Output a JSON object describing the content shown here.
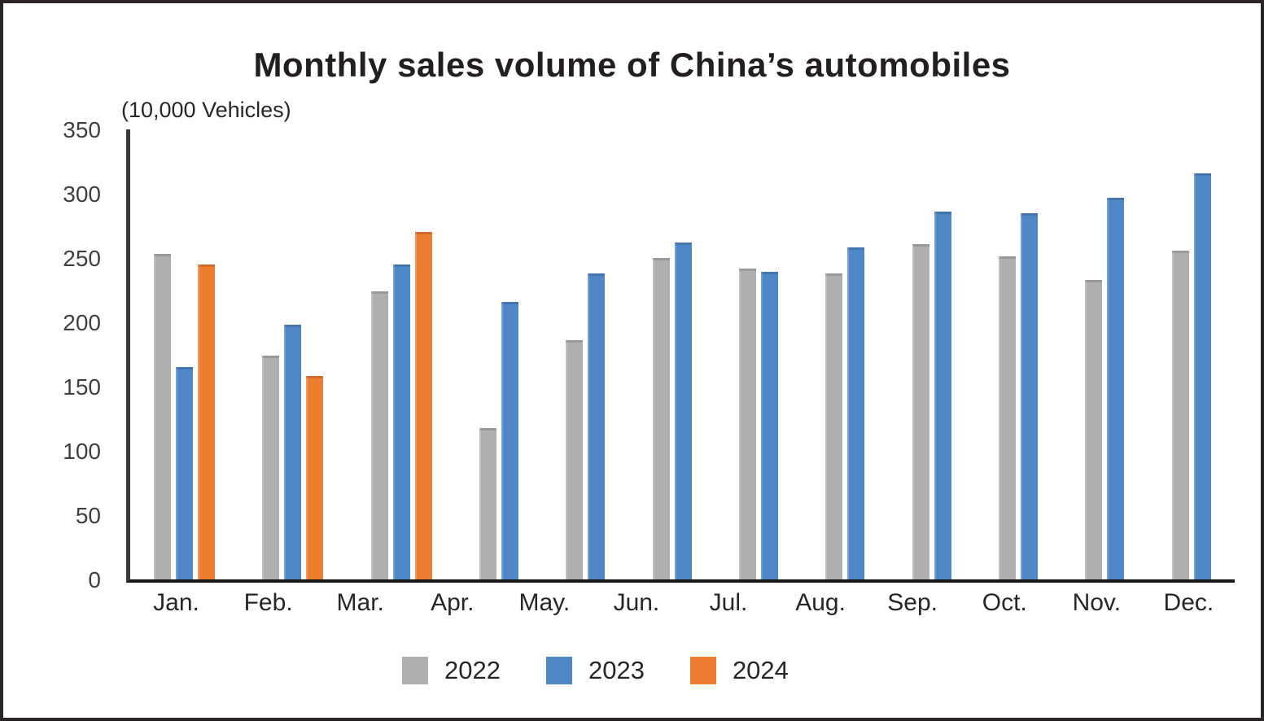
{
  "title": "Monthly sales volume of China’s automobiles",
  "unit_label": "(10,000 Vehicles)",
  "colors": {
    "series_2022": "#AFAFAF",
    "series_2023": "#4F86C6",
    "series_2024": "#ED7D31",
    "axis_vertical": "#3B3B3B",
    "axis_horizontal": "#181818",
    "title_text": "#231F20",
    "tick_text": "#3F3F3F",
    "page_border": "#2B2424"
  },
  "chart_data": {
    "type": "bar",
    "title": "Monthly sales volume of China’s automobiles",
    "xlabel": "",
    "ylabel": "(10,000 Vehicles)",
    "ylim": [
      0,
      350
    ],
    "yticks": [
      0,
      50,
      100,
      150,
      200,
      250,
      300,
      350
    ],
    "grid": false,
    "legend_position": "bottom",
    "categories": [
      "Jan.",
      "Feb.",
      "Mar.",
      "Apr.",
      "May.",
      "Jun.",
      "Jul.",
      "Aug.",
      "Sep.",
      "Oct.",
      "Nov.",
      "Dec."
    ],
    "series": [
      {
        "name": "2022",
        "color": "#AFAFAF",
        "values": [
          253,
          174,
          224,
          118,
          186,
          250,
          242,
          238,
          261,
          251,
          233,
          256
        ]
      },
      {
        "name": "2023",
        "color": "#4F86C6",
        "values": [
          165,
          198,
          245,
          216,
          238,
          262,
          239,
          258,
          286,
          285,
          297,
          316
        ]
      },
      {
        "name": "2024",
        "color": "#ED7D31",
        "values": [
          245,
          158,
          270,
          null,
          null,
          null,
          null,
          null,
          null,
          null,
          null,
          null
        ]
      }
    ]
  }
}
